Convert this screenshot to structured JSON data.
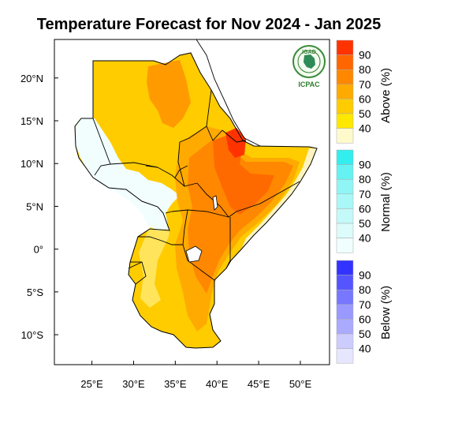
{
  "title": "Temperature Forecast for Nov 2024 - Jan 2025",
  "map": {
    "lon_range": [
      20.5,
      53.5
    ],
    "lat_range": [
      -13.5,
      24.5
    ],
    "x_ticks": [
      {
        "value": 25,
        "label": "25°E"
      },
      {
        "value": 30,
        "label": "30°E"
      },
      {
        "value": 35,
        "label": "35°E"
      },
      {
        "value": 40,
        "label": "40°E"
      },
      {
        "value": 45,
        "label": "45°E"
      },
      {
        "value": 50,
        "label": "50°E"
      }
    ],
    "y_ticks": [
      {
        "value": 20,
        "label": "20°N"
      },
      {
        "value": 15,
        "label": "15°N"
      },
      {
        "value": 10,
        "label": "10°N"
      },
      {
        "value": 5,
        "label": "5°N"
      },
      {
        "value": 0,
        "label": "0°"
      },
      {
        "value": -5,
        "label": "5°S"
      },
      {
        "value": -10,
        "label": "10°S"
      }
    ]
  },
  "logo": {
    "top_text": "IGAD",
    "bottom_text": "ICPAC"
  },
  "legend": {
    "above": {
      "title": "Above (%)",
      "levels": [
        "90",
        "80",
        "70",
        "60",
        "50",
        "40"
      ],
      "colors": [
        "#ff3300",
        "#ff6600",
        "#ff8800",
        "#ffaa00",
        "#ffcc00",
        "#ffe800",
        "#fffacc"
      ]
    },
    "normal": {
      "title": "Normal (%)",
      "levels": [
        "90",
        "80",
        "70",
        "60",
        "50",
        "40"
      ],
      "colors": [
        "#33eeee",
        "#66f2f2",
        "#8ff5f5",
        "#aaf7f7",
        "#c4f9f9",
        "#dcfbfb",
        "#f0fefe"
      ]
    },
    "below": {
      "title": "Below (%)",
      "levels": [
        "90",
        "80",
        "70",
        "60",
        "50",
        "40"
      ],
      "colors": [
        "#3333ff",
        "#5555ff",
        "#7777ff",
        "#9999ff",
        "#aaaaff",
        "#ccccff",
        "#e6e6ff"
      ]
    }
  }
}
